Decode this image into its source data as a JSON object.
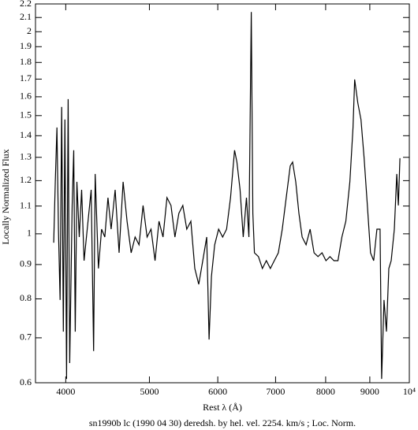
{
  "chart_data": {
    "type": "line",
    "title": "sn1990b lc (1990 04 30) deredsh. by hel. vel.  2254. km/s ;  Loc. Norm.",
    "xlabel": "Rest λ (Å)",
    "ylabel": "Locally Normalized Flux",
    "xlog": true,
    "ylog": true,
    "color": "#000000",
    "xlim": [
      3690,
      10000
    ],
    "ylim": [
      0.6,
      2.2
    ],
    "xticks": [
      4000,
      5000,
      6000,
      7000,
      8000,
      9000,
      {
        "value": 10000,
        "label": "10⁴"
      }
    ],
    "yticks": [
      0.6,
      0.7,
      0.8,
      0.9,
      1,
      1.1,
      1.2,
      1.3,
      1.4,
      1.5,
      1.6,
      1.7,
      1.8,
      1.9,
      2,
      2.1,
      2.2
    ],
    "x": [
      3874,
      3890,
      3907,
      3923,
      3940,
      3957,
      3974,
      3991,
      4009,
      4026,
      4043,
      4069,
      4086,
      4103,
      4121,
      4147,
      4173,
      4200,
      4236,
      4281,
      4309,
      4327,
      4364,
      4401,
      4439,
      4477,
      4515,
      4563,
      4612,
      4661,
      4711,
      4762,
      4813,
      4864,
      4916,
      4969,
      5022,
      5076,
      5130,
      5185,
      5240,
      5296,
      5352,
      5409,
      5466,
      5524,
      5584,
      5643,
      5703,
      5764,
      5826,
      5863,
      5900,
      5950,
      6014,
      6078,
      6143,
      6208,
      6274,
      6314,
      6368,
      6422,
      6477,
      6519,
      6560,
      6588,
      6616,
      6687,
      6758,
      6830,
      6903,
      6976,
      7051,
      7126,
      7202,
      7279,
      7325,
      7387,
      7450,
      7514,
      7594,
      7675,
      7757,
      7839,
      7923,
      8007,
      8093,
      8179,
      8266,
      8354,
      8443,
      8533,
      8606,
      8643,
      8716,
      8791,
      8865,
      8941,
      9017,
      9094,
      9172,
      9250,
      9289,
      9348,
      9408,
      9468,
      9528,
      9609,
      9671,
      9712,
      9753
    ],
    "values": [
      0.97,
      1.195,
      1.44,
      1.016,
      0.797,
      1.545,
      0.715,
      1.48,
      0.608,
      1.587,
      0.642,
      1.102,
      1.332,
      0.715,
      1.195,
      0.989,
      1.163,
      0.912,
      1.016,
      1.163,
      0.669,
      1.228,
      0.888,
      1.016,
      0.989,
      1.132,
      1.016,
      1.163,
      0.937,
      1.195,
      1.044,
      0.937,
      0.989,
      0.963,
      1.102,
      0.989,
      1.016,
      0.912,
      1.044,
      0.989,
      1.132,
      1.102,
      0.989,
      1.073,
      1.102,
      1.016,
      1.044,
      0.888,
      0.841,
      0.912,
      0.989,
      0.696,
      0.864,
      0.963,
      1.016,
      0.989,
      1.016,
      1.132,
      1.332,
      1.279,
      1.163,
      0.989,
      1.132,
      0.989,
      2.14,
      1.073,
      0.937,
      0.925,
      0.888,
      0.912,
      0.888,
      0.912,
      0.937,
      1.016,
      1.132,
      1.262,
      1.279,
      1.195,
      1.073,
      0.989,
      0.963,
      1.016,
      0.937,
      0.925,
      0.937,
      0.912,
      0.925,
      0.912,
      0.912,
      0.989,
      1.044,
      1.195,
      1.44,
      1.698,
      1.566,
      1.48,
      1.296,
      1.102,
      0.937,
      0.912,
      1.016,
      1.016,
      0.608,
      0.797,
      0.715,
      0.888,
      0.912,
      1.016,
      1.228,
      1.102,
      1.296
    ]
  }
}
